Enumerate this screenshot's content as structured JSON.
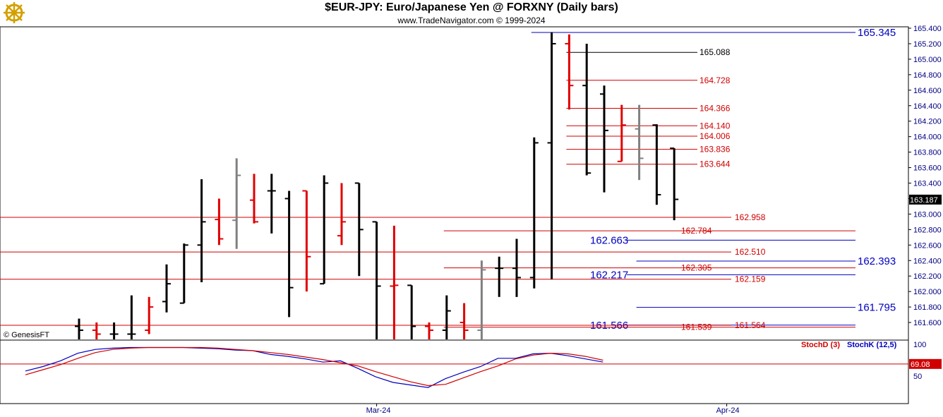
{
  "header": {
    "title": "$EUR-JPY:  Euro/Japanese Yen @ FORXNY  (Daily bars)",
    "subtitle": "www.TradeNavigator.com © 1999-2024"
  },
  "watermark": "© GenesisFT",
  "colors": {
    "bull": "#000000",
    "bear": "#e00000",
    "neutral": "#808080",
    "blue": "#0000c0",
    "red": "#d00000",
    "axis_text": "#000080"
  },
  "chart_data": [
    {
      "type": "ohlc",
      "price_axis": {
        "min": 161.4,
        "max": 165.4,
        "ticks": [
          165.4,
          165.2,
          165.0,
          164.8,
          164.6,
          164.4,
          164.2,
          164.0,
          163.8,
          163.6,
          163.4,
          163.2,
          163.0,
          162.8,
          162.6,
          162.4,
          162.2,
          162.0,
          161.8,
          161.6
        ],
        "tick_labels": [
          "165.400",
          "165.200",
          "165.000",
          "164.800",
          "164.600",
          "164.400",
          "164.200",
          "164.000",
          "163.800",
          "163.600",
          "163.400",
          "163.200",
          "163.000",
          "162.800",
          "162.600",
          "162.400",
          "162.200",
          "162.000",
          "161.800",
          "161.600"
        ],
        "last_price": 163.187,
        "last_label": "163.187"
      },
      "x_axis": {
        "labels": [
          {
            "text": "Mar-24",
            "bar": 17
          },
          {
            "text": "Apr-24",
            "bar": 37
          }
        ]
      },
      "bars": [
        {
          "o": 161.55,
          "h": 161.65,
          "l": 161.35,
          "c": 161.5,
          "color": "bull"
        },
        {
          "o": 161.5,
          "h": 161.6,
          "l": 161.35,
          "c": 161.45,
          "color": "bear"
        },
        {
          "o": 161.45,
          "h": 161.6,
          "l": 161.3,
          "c": 161.45,
          "color": "bull"
        },
        {
          "o": 161.45,
          "h": 161.95,
          "l": 161.35,
          "c": 161.45,
          "color": "bull"
        },
        {
          "o": 161.5,
          "h": 161.93,
          "l": 161.45,
          "c": 161.8,
          "color": "bear"
        },
        {
          "o": 161.87,
          "h": 162.35,
          "l": 161.73,
          "c": 162.1,
          "color": "bull"
        },
        {
          "o": 161.85,
          "h": 162.62,
          "l": 161.85,
          "c": 162.6,
          "color": "bull"
        },
        {
          "o": 162.6,
          "h": 163.45,
          "l": 162.12,
          "c": 162.9,
          "color": "bull"
        },
        {
          "o": 162.93,
          "h": 163.2,
          "l": 162.6,
          "c": 162.68,
          "color": "bear"
        },
        {
          "o": 162.92,
          "h": 163.72,
          "l": 162.55,
          "c": 163.5,
          "color": "neutral"
        },
        {
          "o": 163.18,
          "h": 163.52,
          "l": 162.88,
          "c": 162.9,
          "color": "bear"
        },
        {
          "o": 163.3,
          "h": 163.52,
          "l": 162.75,
          "c": 163.3,
          "color": "bull"
        },
        {
          "o": 163.2,
          "h": 163.3,
          "l": 161.67,
          "c": 162.05,
          "color": "bull"
        },
        {
          "o": 163.3,
          "h": 163.3,
          "l": 162.0,
          "c": 162.45,
          "color": "bear"
        },
        {
          "o": 162.1,
          "h": 163.5,
          "l": 162.1,
          "c": 163.4,
          "color": "bull"
        },
        {
          "o": 162.72,
          "h": 163.4,
          "l": 162.6,
          "c": 162.9,
          "color": "bear"
        },
        {
          "o": 163.4,
          "h": 163.4,
          "l": 162.2,
          "c": 162.8,
          "color": "bull"
        },
        {
          "o": 162.9,
          "h": 162.9,
          "l": 161.0,
          "c": 162.07,
          "color": "bull"
        },
        {
          "o": 162.07,
          "h": 162.85,
          "l": 161.0,
          "c": 162.08,
          "color": "bear"
        },
        {
          "o": 162.08,
          "h": 162.08,
          "l": 161.0,
          "c": 161.55,
          "color": "bull"
        },
        {
          "o": 161.55,
          "h": 161.6,
          "l": 161.0,
          "c": 161.5,
          "color": "bear"
        },
        {
          "o": 161.5,
          "h": 161.95,
          "l": 161.0,
          "c": 161.75,
          "color": "bull"
        },
        {
          "o": 161.6,
          "h": 161.85,
          "l": 161.0,
          "c": 161.5,
          "color": "bear"
        },
        {
          "o": 161.5,
          "h": 162.4,
          "l": 161.0,
          "c": 162.28,
          "color": "neutral"
        },
        {
          "o": 162.3,
          "h": 162.45,
          "l": 161.93,
          "c": 162.3,
          "color": "bull"
        },
        {
          "o": 162.3,
          "h": 162.68,
          "l": 161.93,
          "c": 162.18,
          "color": "bull"
        },
        {
          "o": 162.18,
          "h": 163.99,
          "l": 162.04,
          "c": 163.92,
          "color": "bull"
        },
        {
          "o": 163.92,
          "h": 165.35,
          "l": 162.16,
          "c": 165.2,
          "color": "bull"
        },
        {
          "o": 165.2,
          "h": 165.32,
          "l": 164.35,
          "c": 164.66,
          "color": "bear"
        },
        {
          "o": 164.66,
          "h": 165.2,
          "l": 163.5,
          "c": 163.53,
          "color": "bull"
        },
        {
          "o": 164.55,
          "h": 164.66,
          "l": 163.28,
          "c": 164.08,
          "color": "bull"
        },
        {
          "o": 163.68,
          "h": 164.41,
          "l": 163.68,
          "c": 164.15,
          "color": "bear"
        },
        {
          "o": 164.1,
          "h": 164.41,
          "l": 163.44,
          "c": 163.72,
          "color": "neutral"
        },
        {
          "o": 164.15,
          "h": 164.16,
          "l": 163.12,
          "c": 163.25,
          "color": "bull"
        },
        {
          "o": 163.85,
          "h": 163.85,
          "l": 162.92,
          "c": 163.19,
          "color": "bull"
        }
      ]
    },
    {
      "type": "horizontal_levels",
      "levels": [
        {
          "value": 165.345,
          "label": "165.345",
          "color": "blue",
          "size": "large",
          "from_bar": 26,
          "to": "right"
        },
        {
          "value": 165.088,
          "label": "165.088",
          "color": "black",
          "size": "small",
          "from_bar": 28,
          "to": "label"
        },
        {
          "value": 164.728,
          "label": "164.728",
          "color": "red",
          "size": "small",
          "from_bar": 28,
          "to": "label"
        },
        {
          "value": 164.366,
          "label": "164.366",
          "color": "red",
          "size": "small",
          "from_bar": 28,
          "to": "label"
        },
        {
          "value": 164.14,
          "label": "164.140",
          "color": "red",
          "size": "small",
          "from_bar": 28,
          "to": "label"
        },
        {
          "value": 164.006,
          "label": "164.006",
          "color": "red",
          "size": "small",
          "from_bar": 28,
          "to": "label"
        },
        {
          "value": 163.836,
          "label": "163.836",
          "color": "red",
          "size": "small",
          "from_bar": 28,
          "to": "label"
        },
        {
          "value": 163.644,
          "label": "163.644",
          "color": "red",
          "size": "small",
          "from_bar": 28,
          "to": "label"
        },
        {
          "value": 162.958,
          "label": "162.958",
          "color": "red",
          "size": "small",
          "from_bar": -1,
          "to": "label2"
        },
        {
          "value": 162.784,
          "label": "162.784",
          "color": "red",
          "size": "small",
          "from_bar": 21,
          "to": "label"
        },
        {
          "value": 162.663,
          "label": "162.663",
          "color": "blue",
          "size": "large",
          "from_bar": 32,
          "to": "right_mid"
        },
        {
          "value": 162.51,
          "label": "162.510",
          "color": "red",
          "size": "small",
          "from_bar": -1,
          "to": "label2"
        },
        {
          "value": 162.393,
          "label": "162.393",
          "color": "blue",
          "size": "large",
          "from_bar": 32,
          "to": "right"
        },
        {
          "value": 162.305,
          "label": "162.305",
          "color": "red",
          "size": "small",
          "from_bar": 21,
          "to": "label"
        },
        {
          "value": 162.217,
          "label": "162.217",
          "color": "blue",
          "size": "large",
          "from_bar": 32,
          "to": "right_mid"
        },
        {
          "value": 162.159,
          "label": "162.159",
          "color": "red",
          "size": "small",
          "from_bar": -1,
          "to": "label2"
        },
        {
          "value": 161.795,
          "label": "161.795",
          "color": "blue",
          "size": "large",
          "from_bar": 32,
          "to": "right"
        },
        {
          "value": 161.566,
          "label": "161.566",
          "color": "blue",
          "size": "large",
          "from_bar": 32,
          "to": "right_mid"
        },
        {
          "value": 161.564,
          "label": "161.564",
          "color": "red",
          "size": "small",
          "from_bar": -1,
          "to": "label2"
        },
        {
          "value": 161.539,
          "label": "161.539",
          "color": "red",
          "size": "small",
          "from_bar": 21,
          "to": "label"
        }
      ]
    },
    {
      "type": "line",
      "title": "",
      "y_axis": {
        "min": 0,
        "max": 100,
        "ticks": [
          100,
          50
        ],
        "last_label": "69.08",
        "last_value": 69.08
      },
      "legend": [
        {
          "name": "StochD (3)",
          "color": "red"
        },
        {
          "name": "StochK (12,5)",
          "color": "blue"
        }
      ],
      "series": [
        {
          "name": "StochK (12,5)",
          "color": "blue",
          "values": [
            58,
            65,
            74,
            86,
            92,
            94,
            95,
            95,
            95,
            95,
            94,
            93,
            91,
            90,
            84,
            81,
            77,
            72,
            74,
            62,
            49,
            40,
            36,
            32,
            46,
            56,
            65,
            78,
            78,
            85,
            86,
            82,
            77,
            72
          ]
        },
        {
          "name": "StochD (3)",
          "color": "red",
          "values": [
            52,
            60,
            68,
            78,
            87,
            92,
            94,
            95,
            95,
            95,
            95,
            94,
            92,
            90,
            87,
            84,
            80,
            76,
            71,
            66,
            57,
            49,
            41,
            35,
            37,
            47,
            57,
            66,
            77,
            83,
            86,
            85,
            81,
            75
          ]
        }
      ]
    }
  ]
}
